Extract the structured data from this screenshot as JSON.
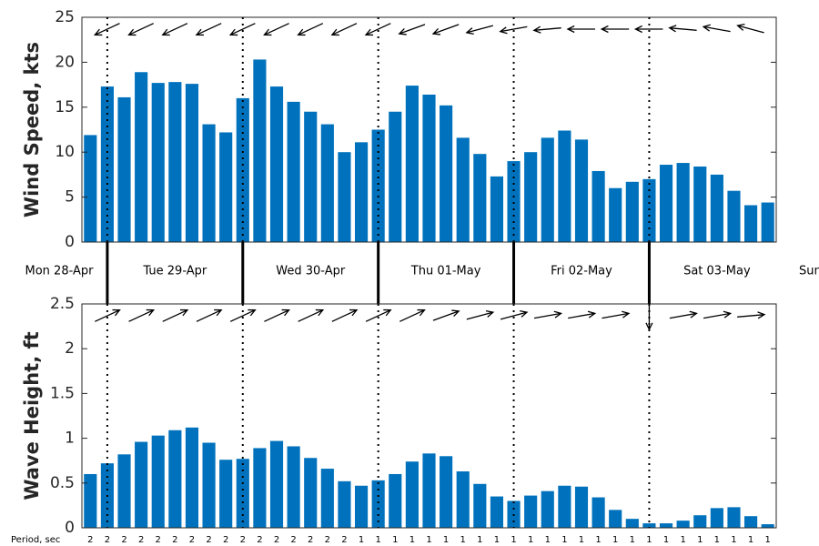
{
  "chart_data": [
    {
      "type": "bar",
      "ylabel": "Wind Speed, kts",
      "color": "#0072bd",
      "x_labels": [
        "Mon 28-Apr",
        "Tue 29-Apr",
        "Wed 30-Apr",
        "Thu 01-May",
        "Fri 02-May",
        "Sat 03-May",
        "Sun"
      ],
      "values": [
        11.9,
        17.3,
        16.1,
        18.9,
        17.7,
        17.8,
        17.6,
        13.1,
        12.2,
        16.0,
        20.3,
        17.3,
        15.6,
        14.5,
        13.1,
        10.0,
        11.1,
        12.5,
        14.5,
        17.4,
        16.4,
        15.2,
        11.6,
        9.8,
        7.3,
        9.0,
        10.0,
        11.6,
        12.4,
        11.4,
        7.9,
        6.0,
        6.7,
        7.0,
        8.6,
        8.8,
        8.4,
        7.5,
        5.7,
        4.1,
        4.4
      ],
      "arrow_directions": [
        205,
        205,
        205,
        205,
        205,
        205,
        205,
        205,
        205,
        200,
        200,
        195,
        190,
        185,
        180,
        180,
        180,
        175,
        170,
        165
      ],
      "ylim": [
        0,
        25
      ],
      "yticks": [
        0,
        5,
        10,
        15,
        20,
        25
      ]
    },
    {
      "type": "bar",
      "ylabel": "Wave Height, ft",
      "color": "#0072bd",
      "values": [
        0.6,
        0.72,
        0.82,
        0.96,
        1.03,
        1.09,
        1.12,
        0.95,
        0.76,
        0.77,
        0.89,
        0.97,
        0.91,
        0.78,
        0.66,
        0.52,
        0.47,
        0.53,
        0.6,
        0.74,
        0.83,
        0.8,
        0.63,
        0.49,
        0.35,
        0.3,
        0.36,
        0.41,
        0.47,
        0.46,
        0.34,
        0.2,
        0.1,
        0.05,
        0.05,
        0.08,
        0.14,
        0.22,
        0.23,
        0.13,
        0.04
      ],
      "arrow_directions": [
        25,
        25,
        25,
        25,
        25,
        25,
        25,
        25,
        25,
        25,
        20,
        15,
        15,
        10,
        10,
        10,
        270,
        10,
        10,
        5
      ],
      "period_label": "Period, sec",
      "periods": [
        2,
        2,
        2,
        2,
        2,
        2,
        2,
        2,
        2,
        2,
        2,
        2,
        2,
        2,
        2,
        2,
        1,
        1,
        1,
        1,
        1,
        1,
        1,
        1,
        1,
        1,
        1,
        1,
        1,
        1,
        1,
        1,
        1,
        1,
        1,
        1,
        1,
        1,
        1,
        1,
        1
      ],
      "ylim": [
        0,
        2.5
      ],
      "yticks": [
        0,
        0.5,
        1,
        1.5,
        2,
        2.5
      ]
    }
  ]
}
